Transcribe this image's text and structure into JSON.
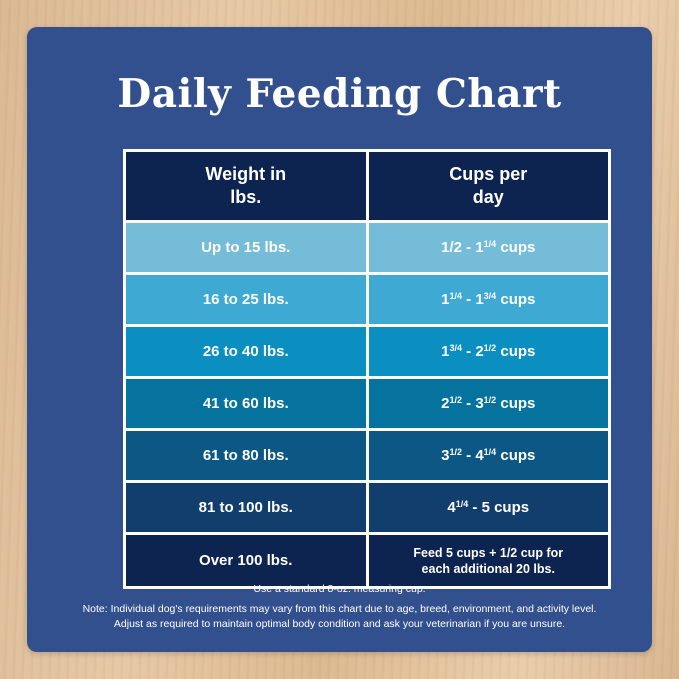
{
  "title": "Daily Feeding Chart",
  "table": {
    "headers": [
      {
        "line1": "Weight in",
        "line2": "lbs."
      },
      {
        "line1": "Cups per",
        "line2": "day"
      }
    ],
    "rows": [
      {
        "weight": "Up to 15 lbs.",
        "cups": {
          "a": "1/2 - 1",
          "a_sup": "1/4",
          "b": "",
          "b_sup": "",
          "unit": " cups"
        },
        "color": "#74bcd8"
      },
      {
        "weight": "16 to 25 lbs.",
        "cups": {
          "a": "1",
          "a_sup": "1/4",
          "b": " - 1",
          "b_sup": "3/4",
          "unit": " cups"
        },
        "color": "#3eaad4"
      },
      {
        "weight": "26 to 40 lbs.",
        "cups": {
          "a": "1",
          "a_sup": "3/4",
          "b": " - 2",
          "b_sup": "1/2",
          "unit": " cups"
        },
        "color": "#0b8ec0"
      },
      {
        "weight": "41 to 60 lbs.",
        "cups": {
          "a": "2",
          "a_sup": "1/2",
          "b": " - 3",
          "b_sup": "1/2",
          "unit": " cups"
        },
        "color": "#06739f"
      },
      {
        "weight": "61 to 80 lbs.",
        "cups": {
          "a": "3",
          "a_sup": "1/2",
          "b": " - 4",
          "b_sup": "1/4",
          "unit": " cups"
        },
        "color": "#0c5783"
      },
      {
        "weight": "81 to 100 lbs.",
        "cups": {
          "a": "4",
          "a_sup": "1/4",
          "b": " - 5 cups",
          "b_sup": "",
          "unit": ""
        },
        "color": "#123e6d"
      },
      {
        "weight": "Over 100 lbs.",
        "cups_text": [
          "Feed 5 cups + 1/2 cup for",
          "each additional 20 lbs."
        ],
        "color": "#0d2350"
      }
    ]
  },
  "notes": {
    "measuring": "Use a standard 8-oz. measuring cup.",
    "line1": "Note: Individual dog's requirements may vary from this chart due to age, breed, environment, and activity level.",
    "line2": "Adjust as required to maintain optimal body condition and ask your veterinarian if you are unsure."
  }
}
